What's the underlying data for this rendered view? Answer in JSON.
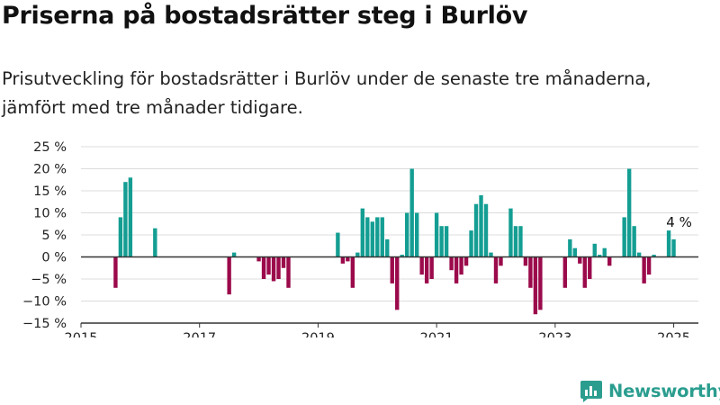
{
  "title": "Priserna på bostadsrätter steg i Burlöv",
  "subtitle": "Prisutveckling för bostadsrätter i Burlöv under de senaste tre månaderna, jämfört med tre månader tidigare.",
  "brand": {
    "name": "Newsworthy",
    "icon": "newsworthy-logo-icon"
  },
  "colors": {
    "positive": "#149e93",
    "negative": "#9b0a4b",
    "grid": "#dcdcdc",
    "axis": "#333333"
  },
  "chart_data": {
    "type": "bar",
    "xlabel": "",
    "ylabel": "",
    "ylim": [
      -15,
      25
    ],
    "yticks": [
      -15,
      -10,
      -5,
      0,
      5,
      10,
      15,
      20,
      25
    ],
    "ytick_labels": [
      "−15 %",
      "−10 %",
      "−5 %",
      "0 %",
      "5 %",
      "10 %",
      "15 %",
      "20 %",
      "25 %"
    ],
    "xlim": [
      "2015-01",
      "2025-06"
    ],
    "xticks": [
      "2015",
      "2017",
      "2019",
      "2021",
      "2023",
      "2025"
    ],
    "grid": true,
    "annotation": {
      "date": "2025-01",
      "text": "4 %"
    },
    "series": [
      {
        "x": [
          "2015-08",
          "2015-09",
          "2015-10",
          "2015-11",
          "2016-04",
          "2017-07",
          "2017-08",
          "2018-01",
          "2018-02",
          "2018-03",
          "2018-04",
          "2018-05",
          "2018-06",
          "2018-07",
          "2019-05",
          "2019-06",
          "2019-07",
          "2019-08",
          "2019-09",
          "2019-10",
          "2019-11",
          "2019-12",
          "2020-01",
          "2020-02",
          "2020-03",
          "2020-04",
          "2020-05",
          "2020-06",
          "2020-07",
          "2020-08",
          "2020-09",
          "2020-10",
          "2020-11",
          "2020-12",
          "2021-01",
          "2021-02",
          "2021-03",
          "2021-04",
          "2021-05",
          "2021-06",
          "2021-07",
          "2021-08",
          "2021-09",
          "2021-10",
          "2021-11",
          "2021-12",
          "2022-01",
          "2022-02",
          "2022-04",
          "2022-05",
          "2022-06",
          "2022-07",
          "2022-08",
          "2022-09",
          "2022-10",
          "2023-03",
          "2023-04",
          "2023-05",
          "2023-06",
          "2023-07",
          "2023-08",
          "2023-09",
          "2023-10",
          "2023-11",
          "2023-12",
          "2024-03",
          "2024-04",
          "2024-05",
          "2024-06",
          "2024-07",
          "2024-08",
          "2024-09",
          "2024-12",
          "2025-01",
          "2025-02"
        ],
        "values": [
          -7,
          9,
          17,
          18,
          6.5,
          -8.5,
          1,
          -1,
          -5,
          -4,
          -5.5,
          -5,
          -2.5,
          -7,
          5.5,
          -1.5,
          -1,
          -7,
          1,
          11,
          9,
          8,
          9,
          9,
          4,
          -6,
          -12,
          0.5,
          10,
          20,
          10,
          -4,
          -6,
          -5,
          10,
          7,
          7,
          -3,
          -6,
          -4,
          -2,
          6,
          12,
          14,
          12,
          1,
          -6,
          -2,
          11,
          7,
          7,
          -2,
          -7,
          -13,
          -12,
          -7,
          4,
          2,
          -1.5,
          -7,
          -5,
          3,
          0.5,
          2,
          -2,
          9,
          20,
          7,
          1,
          -6,
          -4,
          0.5,
          6,
          4,
          0
        ]
      }
    ]
  }
}
